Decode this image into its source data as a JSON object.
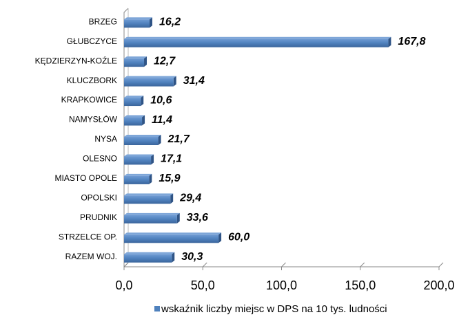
{
  "chart_data": {
    "type": "bar",
    "orientation": "horizontal",
    "categories": [
      "BRZEG",
      "GŁUBCZYCE",
      "KĘDZIERZYN-KOŹLE",
      "KLUCZBORK",
      "KRAPKOWICE",
      "NAMYSŁÓW",
      "NYSA",
      "OLESNO",
      "MIASTO OPOLE",
      "OPOLSKI",
      "PRUDNIK",
      "STRZELCE OP.",
      "RAZEM WOJ."
    ],
    "series": [
      {
        "name": "wskaźnik liczby miejsc w DPS na 10 tys. ludności",
        "color": "#4f81bd",
        "values": [
          16.2,
          167.8,
          12.7,
          31.4,
          10.6,
          11.4,
          21.7,
          17.1,
          15.9,
          29.4,
          33.6,
          60.0,
          30.3
        ],
        "value_labels": [
          "16,2",
          "167,8",
          "12,7",
          "31,4",
          "10,6",
          "11,4",
          "21,7",
          "17,1",
          "15,9",
          "29,4",
          "33,6",
          "60,0",
          "30,3"
        ]
      }
    ],
    "xlim": [
      0,
      200
    ],
    "xticks": [
      {
        "value": 0,
        "label": "0,0"
      },
      {
        "value": 50,
        "label": "50,0"
      },
      {
        "value": 100,
        "label": "100,0"
      },
      {
        "value": 150,
        "label": "150,0"
      },
      {
        "value": 200,
        "label": "200,0"
      }
    ],
    "legend": "bottom"
  }
}
